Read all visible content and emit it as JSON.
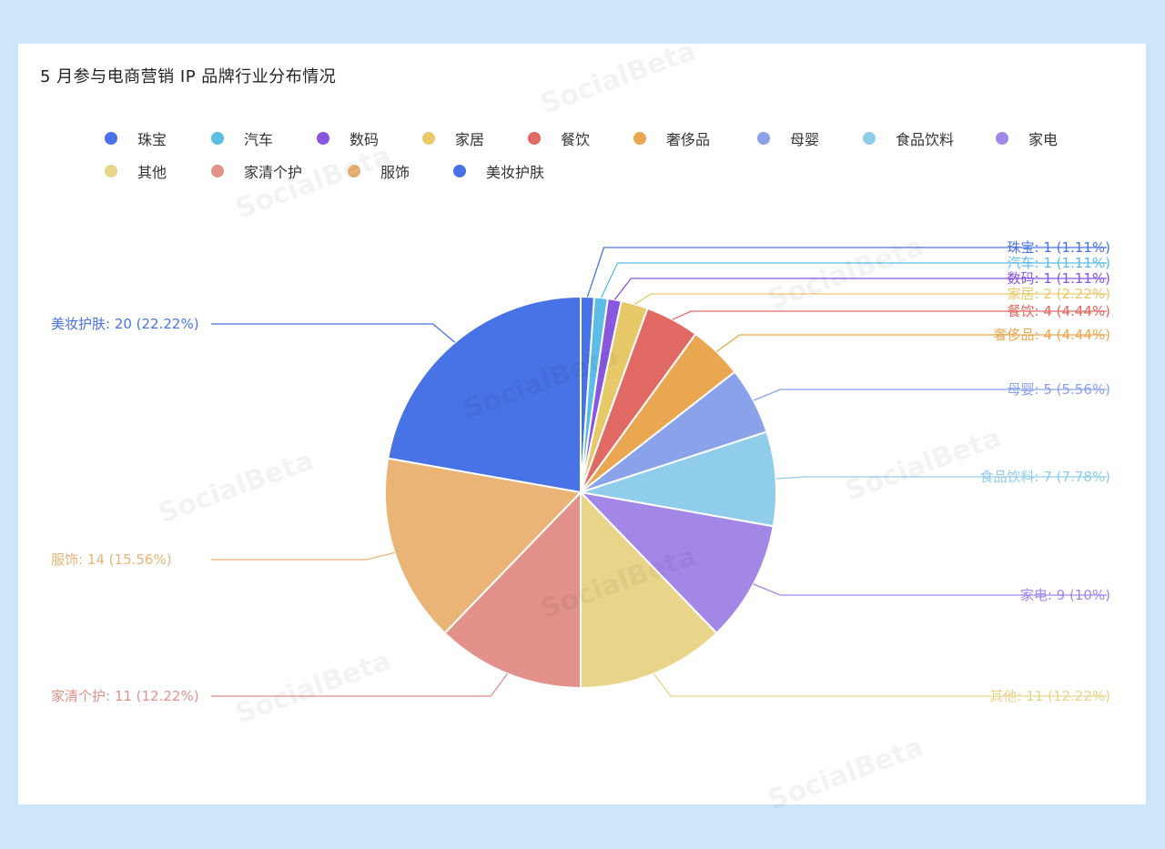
{
  "chart_data": {
    "type": "pie",
    "title": "5 月参与电商营销 IP 品牌行业分布情况",
    "slices": [
      {
        "name": "珠宝",
        "value": 1,
        "percent": "1.11%",
        "color": "#4873e6"
      },
      {
        "name": "汽车",
        "value": 1,
        "percent": "1.11%",
        "color": "#5bbde6"
      },
      {
        "name": "数码",
        "value": 1,
        "percent": "1.11%",
        "color": "#8757e0"
      },
      {
        "name": "家居",
        "value": 2,
        "percent": "2.22%",
        "color": "#e8c96a"
      },
      {
        "name": "餐饮",
        "value": 4,
        "percent": "4.44%",
        "color": "#e06a63"
      },
      {
        "name": "奢侈品",
        "value": 4,
        "percent": "4.44%",
        "color": "#e9a752"
      },
      {
        "name": "母婴",
        "value": 5,
        "percent": "5.56%",
        "color": "#8aa2ea"
      },
      {
        "name": "食品饮料",
        "value": 7,
        "percent": "7.78%",
        "color": "#90cdeb"
      },
      {
        "name": "家电",
        "value": 9,
        "percent": "10%",
        "color": "#a287e6"
      },
      {
        "name": "其他",
        "value": 11,
        "percent": "12.22%",
        "color": "#e8d58a"
      },
      {
        "name": "家清个护",
        "value": 11,
        "percent": "12.22%",
        "color": "#e2918b"
      },
      {
        "name": "服饰",
        "value": 14,
        "percent": "15.56%",
        "color": "#e9b476"
      },
      {
        "name": "美妆护肤",
        "value": 20,
        "percent": "22.22%",
        "color": "#4873e6"
      }
    ],
    "legend_position": "top"
  },
  "watermark": "SocialBeta"
}
